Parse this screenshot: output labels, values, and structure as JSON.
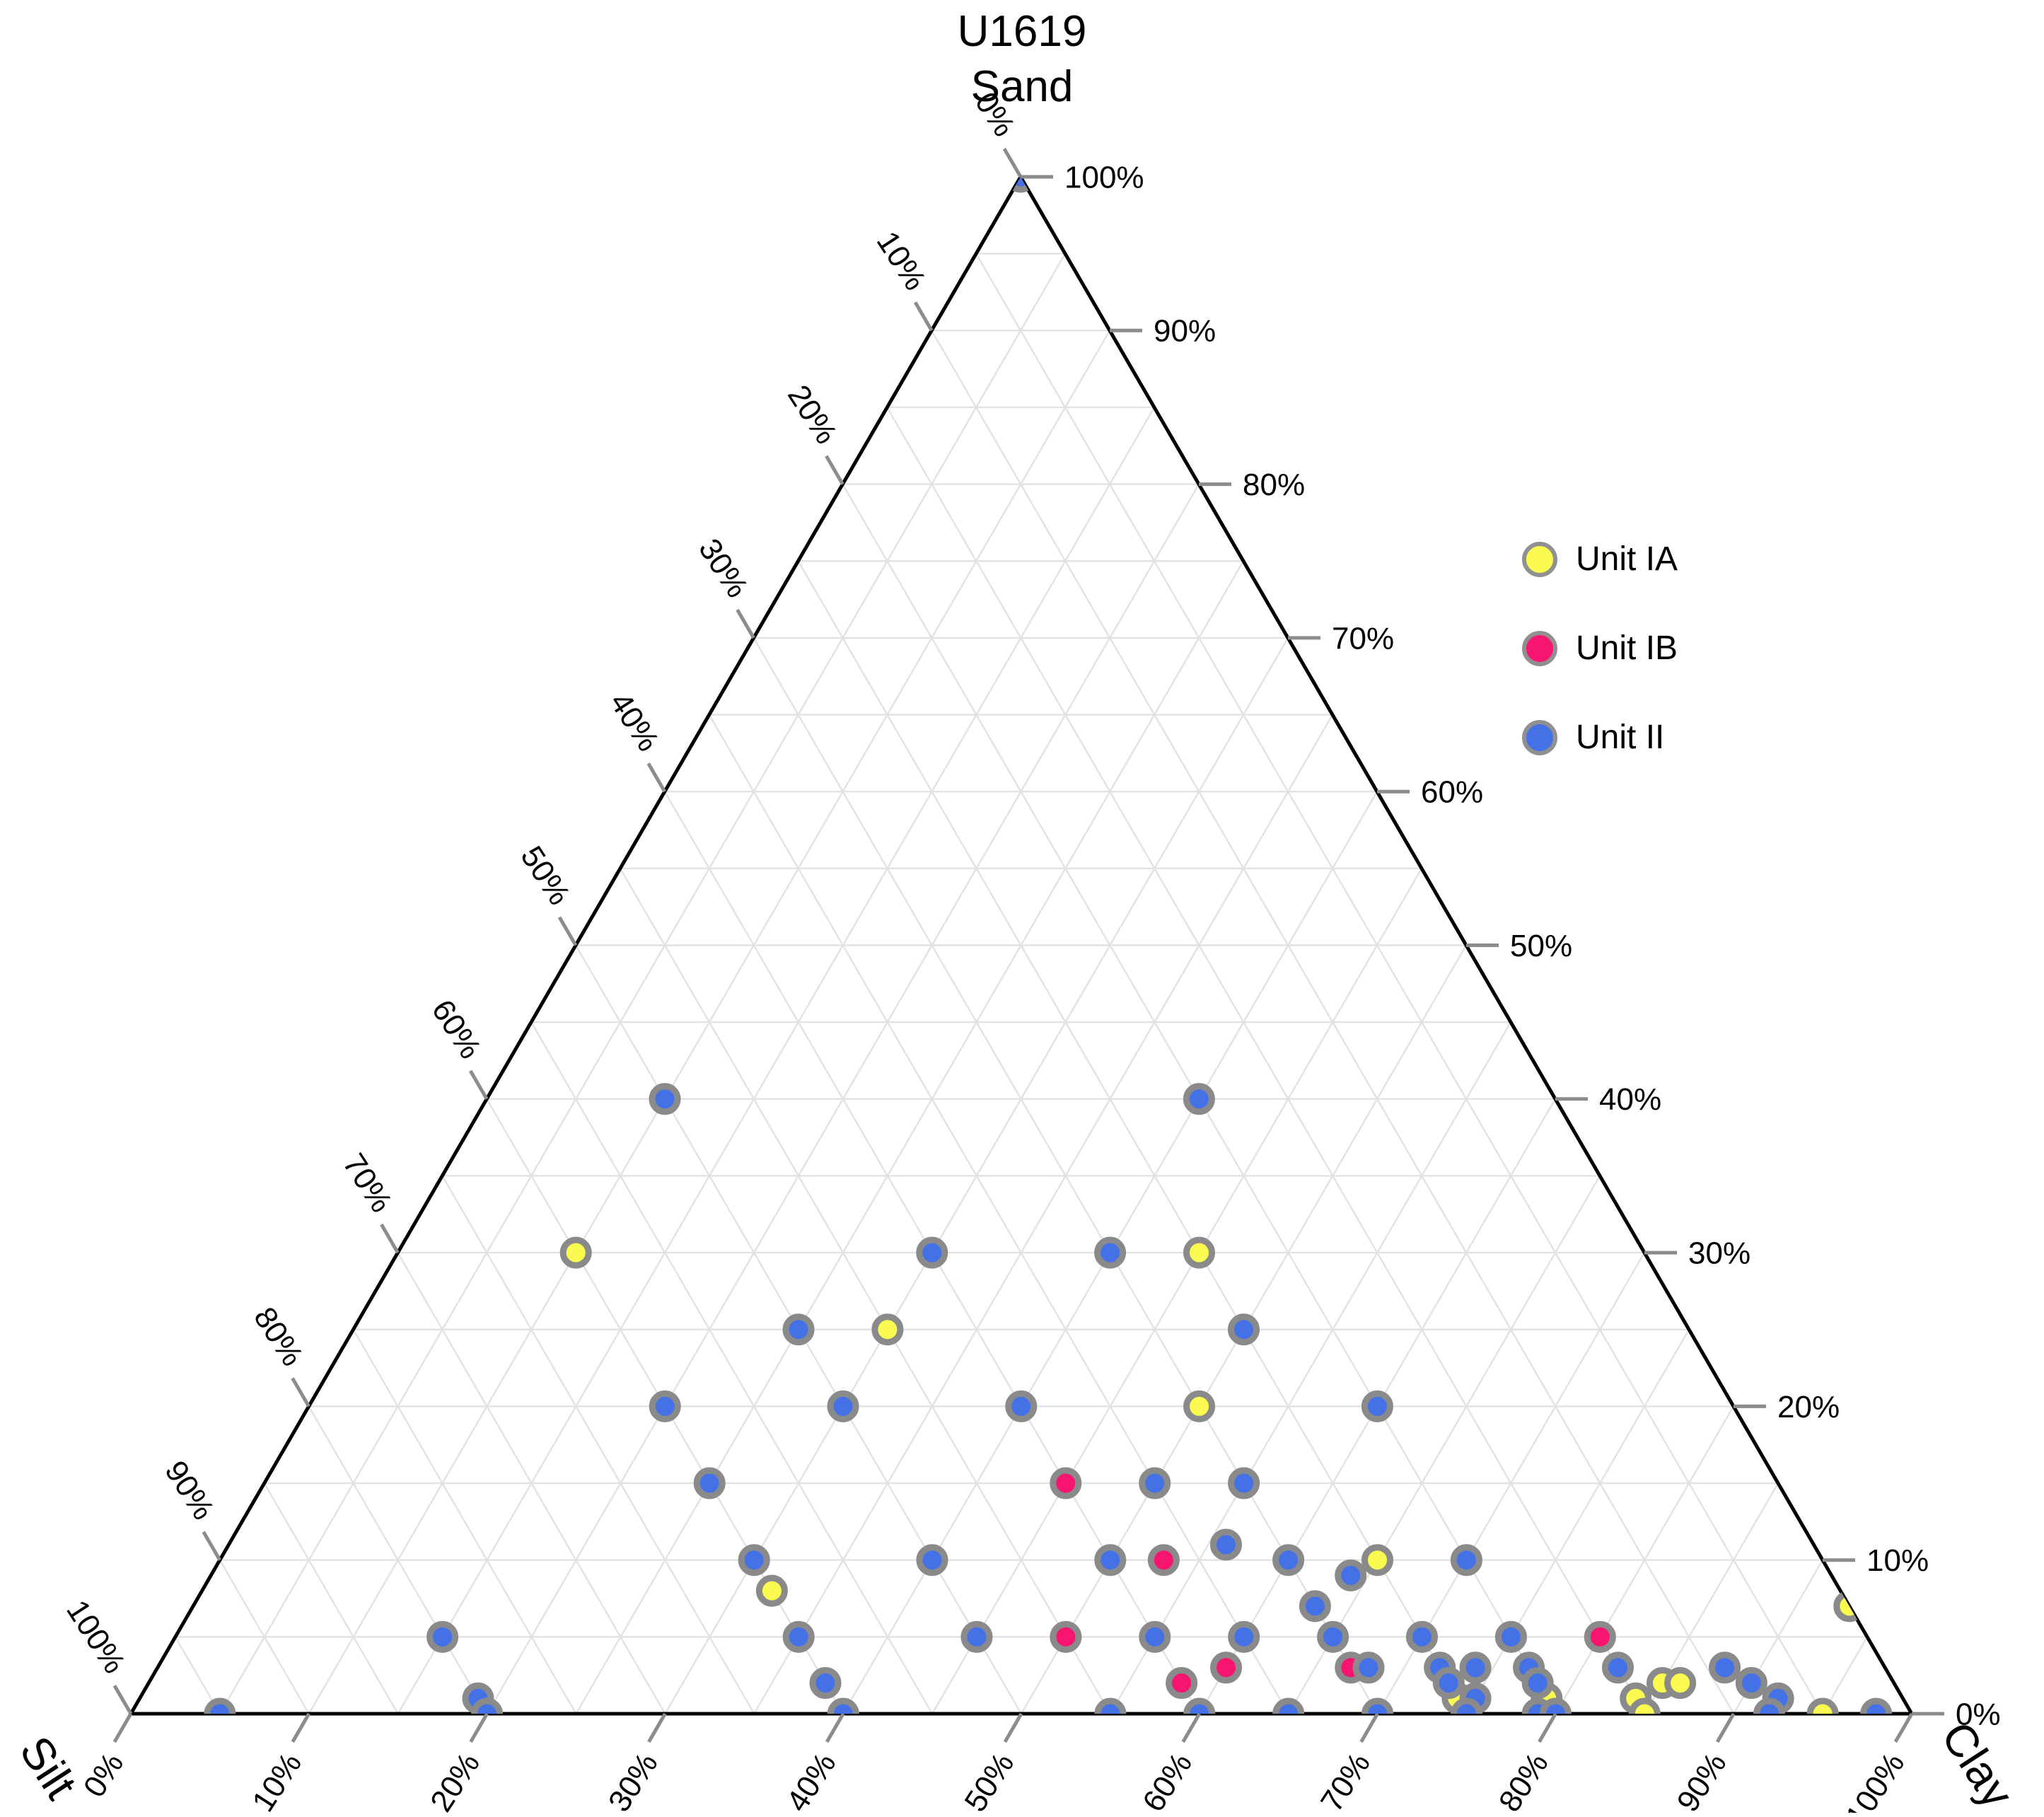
{
  "title": {
    "line1": "U1619"
  },
  "axes": {
    "top_label": "Sand",
    "left_label": "Silt",
    "right_label": "Clay",
    "tick_labels": [
      "0%",
      "10%",
      "20%",
      "30%",
      "40%",
      "50%",
      "60%",
      "70%",
      "80%",
      "90%",
      "100%"
    ],
    "tick_step_percent": 10,
    "grid_step_percent": 5
  },
  "colors": {
    "unit_ia": "#FAFA50",
    "unit_ib": "#F8156F",
    "unit_ii": "#4472E6",
    "marker_stroke": "#8A8A8A",
    "grid_line": "#E2E2E2",
    "triangle_edge": "#000000",
    "tick_mark": "#8C8C8C",
    "text": "#000000"
  },
  "chart_data": {
    "type": "scatter",
    "variant": "ternary",
    "title": "U1619",
    "axis_top": "Sand",
    "axis_bottom_left": "Silt",
    "axis_bottom_right": "Clay",
    "axis_ranges": "each axis 0-100%, tick labels every 10%, gridlines every 5%",
    "legend_position": "upper right",
    "point_format": [
      "sand_pct",
      "clay_pct",
      "silt_pct"
    ],
    "series": [
      {
        "name": "Unit IA",
        "color": "#FAFA50",
        "points": [
          [
            30,
            10,
            60
          ],
          [
            30,
            45,
            25
          ],
          [
            25,
            30,
            45
          ],
          [
            20,
            50,
            30
          ],
          [
            10,
            65,
            25
          ],
          [
            8,
            32,
            60
          ],
          [
            7,
            93,
            0
          ],
          [
            2,
            85,
            13
          ],
          [
            2,
            86,
            12
          ],
          [
            1,
            74,
            25
          ],
          [
            1,
            79,
            20
          ],
          [
            1,
            84,
            15
          ],
          [
            0,
            85,
            15
          ],
          [
            0,
            95,
            5
          ]
        ]
      },
      {
        "name": "Unit IB",
        "color": "#F8156F",
        "points": [
          [
            15,
            45,
            40
          ],
          [
            10,
            53,
            37
          ],
          [
            5,
            50,
            45
          ],
          [
            5,
            80,
            15
          ],
          [
            3,
            60,
            37
          ],
          [
            3,
            67,
            30
          ],
          [
            2,
            58,
            40
          ]
        ]
      },
      {
        "name": "Unit II",
        "color": "#4472E6",
        "points": [
          [
            100,
            0,
            0
          ],
          [
            40,
            10,
            50
          ],
          [
            40,
            40,
            20
          ],
          [
            30,
            30,
            40
          ],
          [
            30,
            40,
            30
          ],
          [
            25,
            25,
            50
          ],
          [
            25,
            50,
            25
          ],
          [
            20,
            20,
            60
          ],
          [
            20,
            30,
            50
          ],
          [
            20,
            40,
            40
          ],
          [
            20,
            60,
            20
          ],
          [
            15,
            25,
            60
          ],
          [
            15,
            50,
            35
          ],
          [
            15,
            55,
            30
          ],
          [
            11,
            56,
            33
          ],
          [
            10,
            30,
            60
          ],
          [
            10,
            40,
            50
          ],
          [
            10,
            50,
            40
          ],
          [
            10,
            60,
            30
          ],
          [
            10,
            70,
            20
          ],
          [
            9,
            64,
            27
          ],
          [
            7,
            63,
            30
          ],
          [
            5,
            15,
            80
          ],
          [
            5,
            35,
            60
          ],
          [
            5,
            45,
            50
          ],
          [
            5,
            55,
            40
          ],
          [
            5,
            60,
            35
          ],
          [
            5,
            65,
            30
          ],
          [
            5,
            70,
            25
          ],
          [
            5,
            75,
            20
          ],
          [
            3,
            68,
            29
          ],
          [
            3,
            72,
            25
          ],
          [
            3,
            74,
            23
          ],
          [
            3,
            77,
            20
          ],
          [
            3,
            82,
            15
          ],
          [
            3,
            88,
            9
          ],
          [
            2,
            38,
            60
          ],
          [
            2,
            73,
            25
          ],
          [
            2,
            78,
            20
          ],
          [
            2,
            90,
            8
          ],
          [
            1,
            19,
            80
          ],
          [
            1,
            75,
            24
          ],
          [
            1,
            92,
            7
          ],
          [
            0,
            5,
            95
          ],
          [
            0,
            20,
            80
          ],
          [
            0,
            40,
            60
          ],
          [
            0,
            55,
            45
          ],
          [
            0,
            60,
            40
          ],
          [
            0,
            65,
            35
          ],
          [
            0,
            70,
            30
          ],
          [
            0,
            75,
            25
          ],
          [
            0,
            79,
            21
          ],
          [
            0,
            80,
            20
          ],
          [
            0,
            92,
            8
          ],
          [
            0,
            98,
            2
          ]
        ]
      }
    ]
  }
}
